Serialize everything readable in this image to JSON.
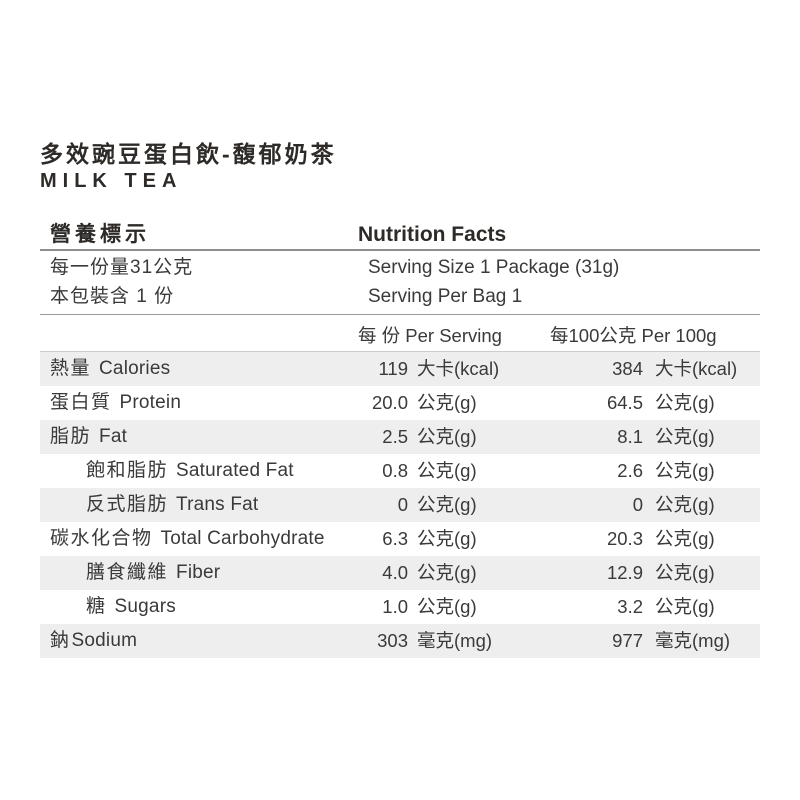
{
  "product": {
    "title_zh": "多效豌豆蛋白飲-馥郁奶茶",
    "title_en": "MILK TEA"
  },
  "header": {
    "label_zh": "營養標示",
    "label_en": "Nutrition Facts"
  },
  "serving": {
    "size_zh": "每一份量31公克",
    "size_en": "Serving Size 1 Package (31g)",
    "count_zh": "本包裝含 1 份",
    "count_en": "Serving Per Bag 1"
  },
  "columns": {
    "per_serving": "每 份 Per Serving",
    "per_100g": "每100公克 Per 100g"
  },
  "rows": [
    {
      "zh": "熱量",
      "en": "Calories",
      "indent": false,
      "nogap": false,
      "striped": true,
      "per_serving": "119",
      "per_serving_unit": "大卡(kcal)",
      "per_100g": "384",
      "per_100g_unit": "大卡(kcal)"
    },
    {
      "zh": "蛋白質",
      "en": "Protein",
      "indent": false,
      "nogap": false,
      "striped": false,
      "per_serving": "20.0",
      "per_serving_unit": "公克(g)",
      "per_100g": "64.5",
      "per_100g_unit": "公克(g)"
    },
    {
      "zh": "脂肪",
      "en": "Fat",
      "indent": false,
      "nogap": false,
      "striped": true,
      "per_serving": "2.5",
      "per_serving_unit": "公克(g)",
      "per_100g": "8.1",
      "per_100g_unit": "公克(g)"
    },
    {
      "zh": "飽和脂肪",
      "en": "Saturated Fat",
      "indent": true,
      "nogap": false,
      "striped": false,
      "per_serving": "0.8",
      "per_serving_unit": "公克(g)",
      "per_100g": "2.6",
      "per_100g_unit": "公克(g)"
    },
    {
      "zh": "反式脂肪",
      "en": "Trans Fat",
      "indent": true,
      "nogap": false,
      "striped": true,
      "per_serving": "0",
      "per_serving_unit": "公克(g)",
      "per_100g": "0",
      "per_100g_unit": "公克(g)"
    },
    {
      "zh": "碳水化合物",
      "en": "Total Carbohydrate",
      "indent": false,
      "nogap": false,
      "striped": false,
      "per_serving": "6.3",
      "per_serving_unit": "公克(g)",
      "per_100g": "20.3",
      "per_100g_unit": "公克(g)"
    },
    {
      "zh": "膳食纖維",
      "en": "Fiber",
      "indent": true,
      "nogap": false,
      "striped": true,
      "per_serving": "4.0",
      "per_serving_unit": "公克(g)",
      "per_100g": "12.9",
      "per_100g_unit": "公克(g)"
    },
    {
      "zh": "糖",
      "en": "Sugars",
      "indent": true,
      "nogap": false,
      "striped": false,
      "per_serving": "1.0",
      "per_serving_unit": "公克(g)",
      "per_100g": "3.2",
      "per_100g_unit": "公克(g)"
    },
    {
      "zh": "鈉",
      "en": "Sodium",
      "indent": false,
      "nogap": true,
      "striped": true,
      "per_serving": "303",
      "per_serving_unit": "毫克(mg)",
      "per_100g": "977",
      "per_100g_unit": "毫克(mg)"
    }
  ],
  "colors": {
    "text": "#3a3a3a",
    "title_text": "#2d2a27",
    "stripe": "#eeeeef",
    "rule_dark": "#8e8e8e",
    "rule_light": "#cccccc",
    "background": "#ffffff"
  }
}
